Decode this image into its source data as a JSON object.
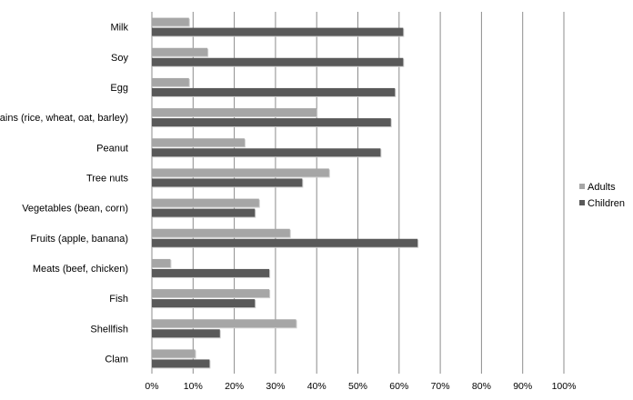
{
  "chart_data": {
    "type": "bar",
    "orientation": "horizontal",
    "categories": [
      "Milk",
      "Soy",
      "Egg",
      "Grains (rice, wheat, oat, barley)",
      "Peanut",
      "Tree nuts",
      "Vegetables (bean, corn)",
      "Fruits (apple, banana)",
      "Meats (beef, chicken)",
      "Fish",
      "Shellfish",
      "Clam"
    ],
    "series": [
      {
        "name": "Adults",
        "color": "#a6a6a6",
        "values": [
          9,
          13.5,
          9,
          40,
          22.5,
          43,
          26,
          33.5,
          4.5,
          28.5,
          35,
          10.5
        ]
      },
      {
        "name": "Children",
        "color": "#595959",
        "values": [
          61,
          61,
          59,
          58,
          55.5,
          36.5,
          25,
          64.5,
          28.5,
          25,
          16.5,
          14
        ]
      }
    ],
    "xlim": [
      0,
      100
    ],
    "x_ticks": [
      "0%",
      "10%",
      "20%",
      "30%",
      "40%",
      "50%",
      "60%",
      "70%",
      "80%",
      "90%",
      "100%"
    ],
    "grid": "vertical",
    "legend_position": "right"
  }
}
